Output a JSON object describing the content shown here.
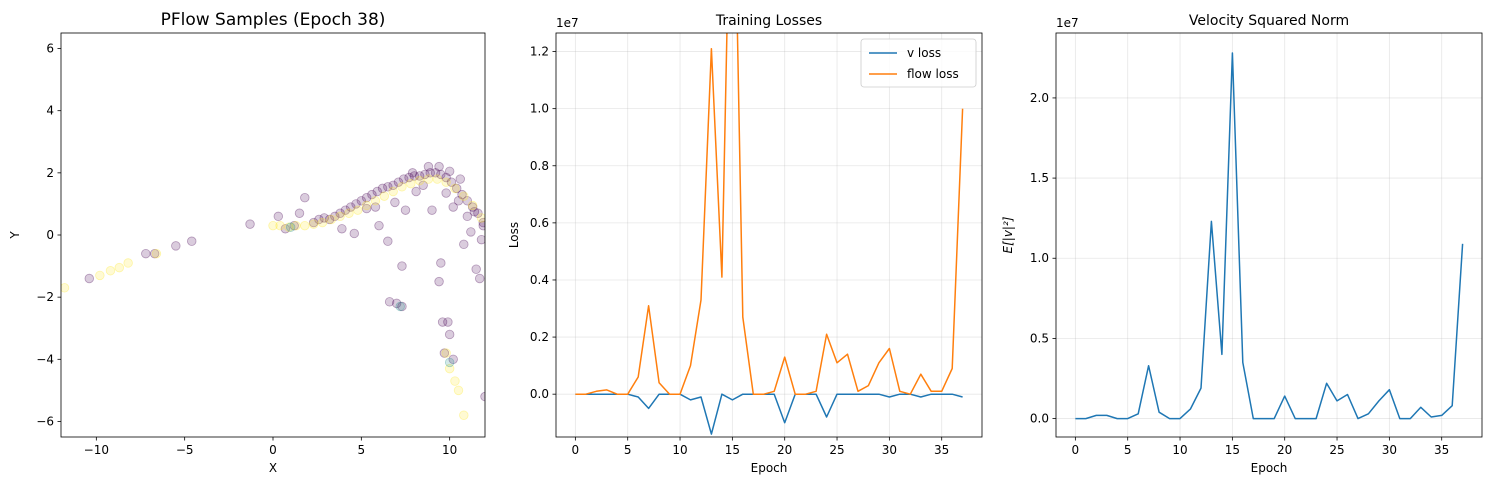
{
  "chart_data": [
    {
      "type": "scatter",
      "title": "PFlow Samples (Epoch 38)",
      "xlabel": "X",
      "ylabel": "Y",
      "xlim": [
        -12,
        12
      ],
      "ylim": [
        -6.5,
        6.5
      ],
      "xticks": [
        -10,
        -5,
        0,
        5,
        10
      ],
      "yticks": [
        -6,
        -4,
        -2,
        0,
        2,
        4,
        6
      ],
      "grid": false,
      "colors": {
        "purple": "#440154",
        "yellow": "#fde725",
        "teal": "#21918c"
      },
      "purple_points": [
        [
          -10.4,
          -1.4
        ],
        [
          -7.2,
          -0.6
        ],
        [
          -6.7,
          -0.6
        ],
        [
          -5.5,
          -0.35
        ],
        [
          -4.6,
          -0.2
        ],
        [
          -1.3,
          0.35
        ],
        [
          0.3,
          0.6
        ],
        [
          0.7,
          0.2
        ],
        [
          1.2,
          0.3
        ],
        [
          1.5,
          0.7
        ],
        [
          1.8,
          1.2
        ],
        [
          2.3,
          0.4
        ],
        [
          2.6,
          0.5
        ],
        [
          2.9,
          0.55
        ],
        [
          3.2,
          0.5
        ],
        [
          3.5,
          0.6
        ],
        [
          3.8,
          0.7
        ],
        [
          4.1,
          0.8
        ],
        [
          4.4,
          0.9
        ],
        [
          4.7,
          1.0
        ],
        [
          5.0,
          1.1
        ],
        [
          5.3,
          1.2
        ],
        [
          5.6,
          1.3
        ],
        [
          5.9,
          1.4
        ],
        [
          6.2,
          1.5
        ],
        [
          6.5,
          1.55
        ],
        [
          6.8,
          1.6
        ],
        [
          7.1,
          1.7
        ],
        [
          7.4,
          1.8
        ],
        [
          7.7,
          1.85
        ],
        [
          8.0,
          1.9
        ],
        [
          8.3,
          1.9
        ],
        [
          8.6,
          1.95
        ],
        [
          8.9,
          2.0
        ],
        [
          9.2,
          2.0
        ],
        [
          9.5,
          1.95
        ],
        [
          9.8,
          1.85
        ],
        [
          10.1,
          1.7
        ],
        [
          10.4,
          1.5
        ],
        [
          10.7,
          1.3
        ],
        [
          11.0,
          1.1
        ],
        [
          11.3,
          0.9
        ],
        [
          11.6,
          0.7
        ],
        [
          11.9,
          0.4
        ],
        [
          8.8,
          2.2
        ],
        [
          9.4,
          2.2
        ],
        [
          10.0,
          2.05
        ],
        [
          8.5,
          1.6
        ],
        [
          7.9,
          2.0
        ],
        [
          10.6,
          1.8
        ],
        [
          3.9,
          0.2
        ],
        [
          4.6,
          0.05
        ],
        [
          6.0,
          0.3
        ],
        [
          6.5,
          -0.2
        ],
        [
          5.8,
          0.9
        ],
        [
          7.5,
          0.8
        ],
        [
          9.0,
          0.8
        ],
        [
          10.2,
          0.9
        ],
        [
          11.0,
          0.6
        ],
        [
          11.2,
          0.1
        ],
        [
          11.9,
          0.3
        ],
        [
          10.8,
          -0.3
        ],
        [
          11.5,
          -1.1
        ],
        [
          11.7,
          -1.4
        ],
        [
          7.3,
          -1.0
        ],
        [
          9.5,
          -0.9
        ],
        [
          9.4,
          -1.5
        ],
        [
          6.6,
          -2.15
        ],
        [
          7.0,
          -2.2
        ],
        [
          7.3,
          -2.3
        ],
        [
          9.6,
          -2.8
        ],
        [
          9.9,
          -2.8
        ],
        [
          10.0,
          -3.2
        ],
        [
          9.7,
          -3.8
        ],
        [
          10.2,
          -4.0
        ],
        [
          12.0,
          -5.2
        ],
        [
          11.8,
          -0.15
        ],
        [
          10.5,
          1.1
        ],
        [
          8.1,
          1.4
        ],
        [
          6.9,
          1.05
        ],
        [
          9.8,
          1.35
        ],
        [
          11.4,
          0.75
        ],
        [
          5.3,
          0.85
        ]
      ],
      "yellow_points": [
        [
          -11.8,
          -1.7
        ],
        [
          -9.8,
          -1.3
        ],
        [
          -9.2,
          -1.15
        ],
        [
          -8.7,
          -1.05
        ],
        [
          -8.2,
          -0.9
        ],
        [
          -6.6,
          -0.6
        ],
        [
          0.0,
          0.3
        ],
        [
          0.4,
          0.3
        ],
        [
          0.9,
          0.25
        ],
        [
          1.3,
          0.3
        ],
        [
          1.8,
          0.3
        ],
        [
          2.3,
          0.35
        ],
        [
          2.8,
          0.4
        ],
        [
          3.3,
          0.5
        ],
        [
          3.8,
          0.6
        ],
        [
          4.3,
          0.7
        ],
        [
          4.8,
          0.8
        ],
        [
          5.3,
          0.95
        ],
        [
          5.8,
          1.1
        ],
        [
          6.3,
          1.25
        ],
        [
          6.8,
          1.4
        ],
        [
          7.3,
          1.55
        ],
        [
          7.8,
          1.65
        ],
        [
          8.3,
          1.75
        ],
        [
          8.8,
          1.8
        ],
        [
          9.3,
          1.8
        ],
        [
          9.8,
          1.7
        ],
        [
          10.3,
          1.5
        ],
        [
          10.8,
          1.25
        ],
        [
          11.3,
          0.95
        ],
        [
          11.8,
          0.55
        ],
        [
          9.8,
          -3.8
        ],
        [
          10.0,
          -4.3
        ],
        [
          10.3,
          -4.7
        ],
        [
          10.5,
          -5.0
        ],
        [
          10.8,
          -5.8
        ]
      ],
      "teal_points": [
        [
          7.2,
          -2.3
        ],
        [
          1.0,
          0.25
        ],
        [
          10.0,
          -4.1
        ]
      ]
    },
    {
      "type": "line",
      "title": "Training Losses",
      "xlabel": "Epoch",
      "ylabel": "Loss",
      "exponent_label": "1e7",
      "xlim": [
        -1.85,
        38.85
      ],
      "ylim": [
        -0.15,
        1.265
      ],
      "xticks": [
        0,
        5,
        10,
        15,
        20,
        25,
        30,
        35
      ],
      "yticks": [
        0.0,
        0.2,
        0.4,
        0.6,
        0.8,
        1.0,
        1.2
      ],
      "grid": true,
      "legend_position": "top-right",
      "series": [
        {
          "name": "v loss",
          "color": "#1f77b4",
          "x": [
            0,
            1,
            2,
            3,
            4,
            5,
            6,
            7,
            8,
            9,
            10,
            11,
            12,
            13,
            14,
            15,
            16,
            17,
            18,
            19,
            20,
            21,
            22,
            23,
            24,
            25,
            26,
            27,
            28,
            29,
            30,
            31,
            32,
            33,
            34,
            35,
            36,
            37
          ],
          "values": [
            0,
            0,
            0,
            0,
            0,
            0,
            -0.01,
            -0.05,
            0,
            0,
            0,
            -0.02,
            -0.01,
            -0.14,
            0,
            -0.02,
            0,
            0,
            0,
            0,
            -0.1,
            0,
            0,
            0,
            -0.08,
            0,
            0,
            0,
            0,
            0,
            -0.01,
            0,
            0,
            -0.01,
            0,
            0,
            0,
            -0.01
          ]
        },
        {
          "name": "flow loss",
          "color": "#ff7f0e",
          "x": [
            0,
            1,
            2,
            3,
            4,
            5,
            6,
            7,
            8,
            9,
            10,
            11,
            12,
            13,
            14,
            15,
            16,
            17,
            18,
            19,
            20,
            21,
            22,
            23,
            24,
            25,
            26,
            27,
            28,
            29,
            30,
            31,
            32,
            33,
            34,
            35,
            36,
            37
          ],
          "values": [
            0,
            0,
            0.01,
            0.015,
            0,
            0,
            0.06,
            0.31,
            0.04,
            0,
            0,
            0.1,
            0.33,
            1.21,
            0.41,
            2.2,
            0.27,
            0,
            0,
            0.01,
            0.13,
            0,
            0,
            0.01,
            0.21,
            0.11,
            0.14,
            0.01,
            0.03,
            0.11,
            0.16,
            0.01,
            0,
            0.07,
            0.01,
            0.01,
            0.09,
            1.0
          ]
        }
      ]
    },
    {
      "type": "line",
      "title": "Velocity Squared Norm",
      "xlabel": "Epoch",
      "ylabel": "E[|v|²]",
      "exponent_label": "1e7",
      "xlim": [
        -1.85,
        38.85
      ],
      "ylim": [
        -0.115,
        2.405
      ],
      "xticks": [
        0,
        5,
        10,
        15,
        20,
        25,
        30,
        35
      ],
      "yticks": [
        0.0,
        0.5,
        1.0,
        1.5,
        2.0
      ],
      "grid": true,
      "series": [
        {
          "name": "",
          "color": "#1f77b4",
          "x": [
            0,
            1,
            2,
            3,
            4,
            5,
            6,
            7,
            8,
            9,
            10,
            11,
            12,
            13,
            14,
            15,
            16,
            17,
            18,
            19,
            20,
            21,
            22,
            23,
            24,
            25,
            26,
            27,
            28,
            29,
            30,
            31,
            32,
            33,
            34,
            35,
            36,
            37
          ],
          "values": [
            0,
            0,
            0.02,
            0.02,
            0,
            0,
            0.03,
            0.33,
            0.04,
            0,
            0,
            0.06,
            0.19,
            1.23,
            0.4,
            2.28,
            0.35,
            0,
            0,
            0,
            0.14,
            0,
            0,
            0,
            0.22,
            0.11,
            0.15,
            0,
            0.03,
            0.11,
            0.18,
            0,
            0,
            0.07,
            0.01,
            0.02,
            0.08,
            1.09
          ]
        }
      ]
    }
  ]
}
